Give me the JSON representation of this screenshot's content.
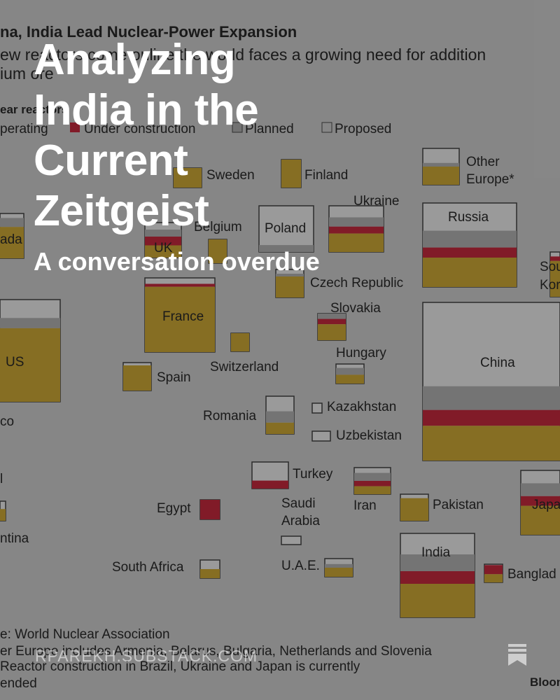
{
  "background": {
    "title": "na, India Lead Nuclear-Power Expansion",
    "subtitle_lines": [
      "ew reactors come online the world faces a growing need for addition",
      "ium ore"
    ],
    "legend_title": "ear reactors",
    "legend": [
      "perating",
      "Under construction",
      "Planned",
      "Proposed"
    ],
    "labels": [
      "Sweden",
      "Finland",
      "Other",
      "Europe*",
      "Ukraine",
      "Poland",
      "Russia",
      "Belgium",
      "ada",
      "UK",
      "Sou",
      "Kor",
      "Czech Republic",
      "France",
      "Slovakia",
      "US",
      "Hungary",
      "China",
      "Switzerland",
      "Spain",
      "Romania",
      "Kazakhstan",
      "co",
      "Uzbekistan",
      "Turkey",
      "l",
      "Saudi",
      "Arabia",
      "Iran",
      "Pakistan",
      "Egypt",
      "Japa",
      "ntina",
      "India",
      "South Africa",
      "U.A.E.",
      "Banglad"
    ],
    "notes": [
      "e: World Nuclear Association",
      "er Europe includes Armenia, Belarus, Bulgaria, Netherlands and Slovenia",
      "Reactor construction in Brazil, Ukraine and Japan is currently",
      "ended"
    ],
    "brand": "Bloom"
  },
  "overlay": {
    "title": "Analyzing India in the Current Zeitgeist",
    "subtitle": "A conversation overdue",
    "footer": "RPAREKH.SUBSTACK.COM"
  }
}
